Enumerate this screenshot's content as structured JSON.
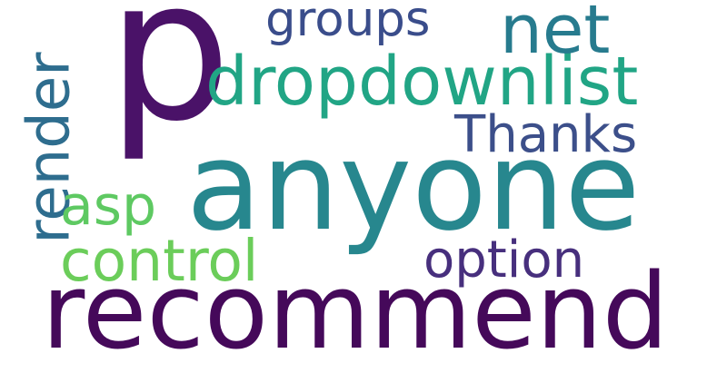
{
  "background": "#ffffff",
  "words": [
    {
      "text": "p",
      "color": "#4a1268",
      "orientation": "horizontal"
    },
    {
      "text": "anyone",
      "color": "#27878e",
      "orientation": "horizontal"
    },
    {
      "text": "recommend",
      "color": "#45095a",
      "orientation": "horizontal"
    },
    {
      "text": "dropdownlist",
      "color": "#21a585",
      "orientation": "horizontal"
    },
    {
      "text": "net",
      "color": "#277b8e",
      "orientation": "horizontal"
    },
    {
      "text": "groups",
      "color": "#3a4d8b",
      "orientation": "horizontal"
    },
    {
      "text": "Thanks",
      "color": "#3c4f8a",
      "orientation": "horizontal"
    },
    {
      "text": "render",
      "color": "#2e6d8e",
      "orientation": "vertical"
    },
    {
      "text": "asp",
      "color": "#5ec962",
      "orientation": "horizontal"
    },
    {
      "text": "control",
      "color": "#6bcd5a",
      "orientation": "horizontal"
    },
    {
      "text": "option",
      "color": "#472f7d",
      "orientation": "horizontal"
    }
  ]
}
